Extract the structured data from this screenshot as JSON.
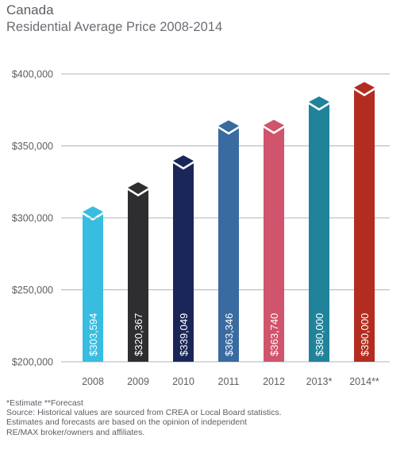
{
  "chart_data": {
    "type": "bar",
    "title": "Canada",
    "subtitle": "Residential Average Price 2008-2014",
    "categories": [
      "2008",
      "2009",
      "2010",
      "2011",
      "2012",
      "2013*",
      "2014**"
    ],
    "values": [
      303594,
      320367,
      339049,
      363346,
      363740,
      380000,
      390000
    ],
    "value_labels": [
      "$303,594",
      "$320,367",
      "$339,049",
      "$363,346",
      "$363,740",
      "$380,000",
      "$390,000"
    ],
    "colors": [
      "#38bde0",
      "#2e2e30",
      "#1b2658",
      "#396aa0",
      "#d0546c",
      "#21839a",
      "#b22d20"
    ],
    "ylim": [
      200000,
      400000
    ],
    "yticks": [
      200000,
      250000,
      300000,
      350000,
      400000
    ],
    "ytick_labels": [
      "$200,000",
      "$250,000",
      "$300,000",
      "$350,000",
      "$400,000"
    ],
    "xlabel": "",
    "ylabel": "",
    "grid": true,
    "legend": "none"
  },
  "footnotes": [
    "*Estimate **Forecast",
    "Source: Historical values are sourced from CREA or Local Board statistics.",
    "Estimates and forecasts are based on the opinion of independent",
    "RE/MAX broker/owners and affiliates."
  ]
}
